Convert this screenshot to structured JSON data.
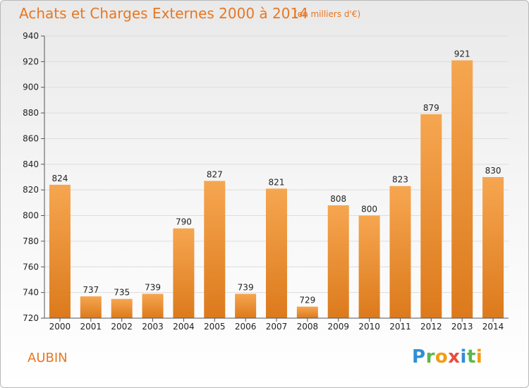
{
  "header": {
    "title": "Achats et Charges Externes 2000 à 2014",
    "subtitle": "(en milliers d'€)"
  },
  "footer": {
    "city": "AUBIN",
    "logo_letters": [
      {
        "char": "P",
        "color": "#2f8fd6"
      },
      {
        "char": "r",
        "color": "#59b947"
      },
      {
        "char": "o",
        "color": "#f39c12"
      },
      {
        "char": "x",
        "color": "#e84c3d"
      },
      {
        "char": "i",
        "color": "#2f8fd6"
      },
      {
        "char": "t",
        "color": "#59b947"
      },
      {
        "char": "i",
        "color": "#f39c12"
      }
    ]
  },
  "colors": {
    "accent": "#e87722",
    "bar_light": "#f6a650",
    "bar_dark": "#dc7a1c",
    "axis": "#555555",
    "grid": "#dddddd"
  },
  "chart_data": {
    "type": "bar",
    "categories": [
      "2000",
      "2001",
      "2002",
      "2003",
      "2004",
      "2005",
      "2006",
      "2007",
      "2008",
      "2009",
      "2010",
      "2011",
      "2012",
      "2013",
      "2014"
    ],
    "values": [
      824,
      737,
      735,
      739,
      790,
      827,
      739,
      821,
      729,
      808,
      800,
      823,
      879,
      921,
      830
    ],
    "ylim": [
      720,
      940
    ],
    "yticks": [
      720,
      740,
      760,
      780,
      800,
      820,
      840,
      860,
      880,
      900,
      920,
      940
    ],
    "grid": true,
    "title": "Achats et Charges Externes 2000 à 2014",
    "subtitle": "(en milliers d'€)"
  }
}
